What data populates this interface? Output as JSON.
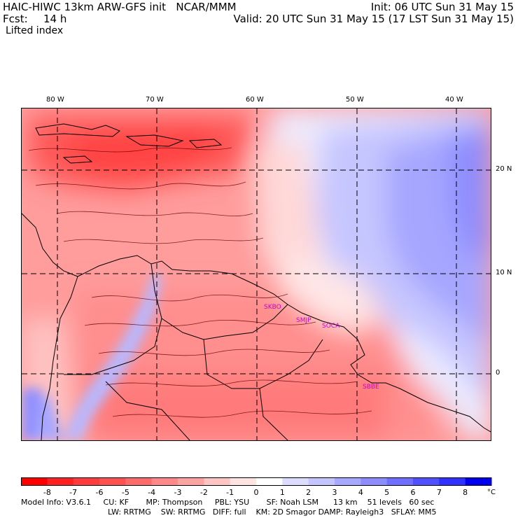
{
  "header": {
    "model_title": "HAIC-HIWC 13km ARW-GFS init   NCAR/MMM",
    "init_time": "Init: 06 UTC Sun 31 May 15",
    "forecast_label": "Fcst:",
    "forecast_hours": "14 h",
    "valid_time": "Valid: 20 UTC Sun 31 May 15 (17 LST Sun 31 May 15)",
    "field_name": "Lifted index"
  },
  "map": {
    "longitude_labels": [
      "80 W",
      "70 W",
      "60 W",
      "50 W",
      "40 W"
    ],
    "latitude_labels": [
      "20 N",
      "10 N",
      "0"
    ],
    "station_labels": [
      "SKBO",
      "SMJP",
      "SOCA",
      "SBBE"
    ],
    "station_color": "#cc00cc",
    "grid_line_style": "dashed"
  },
  "colorbar": {
    "unit": "°C",
    "tick_labels": [
      "-8",
      "-7",
      "-6",
      "-5",
      "-4",
      "-3",
      "-2",
      "-1",
      "0",
      "1",
      "2",
      "3",
      "4",
      "5",
      "6",
      "7",
      "8"
    ],
    "colors": [
      "#ff0000",
      "#ff2020",
      "#ff3c3c",
      "#ff5050",
      "#ff6a6a",
      "#ff8888",
      "#ffa2a2",
      "#ffc4c4",
      "#ffe4e4",
      "#ffffff",
      "#dcdcff",
      "#c4c4ff",
      "#a8a8ff",
      "#8c8cff",
      "#6e6eff",
      "#5050ff",
      "#3030ff",
      "#0000ee"
    ]
  },
  "footer": {
    "line1": "Model Info: V3.6.1     CU: KF       MP: Thompson     PBL: YSU       SF: Noah LSM      13 km    51 levels   60 sec",
    "line2": "LW: RRTMG    SW: RRTMG   DIFF: full    KM: 2D Smagor DAMP: Rayleigh3   SFLAY: MM5"
  }
}
